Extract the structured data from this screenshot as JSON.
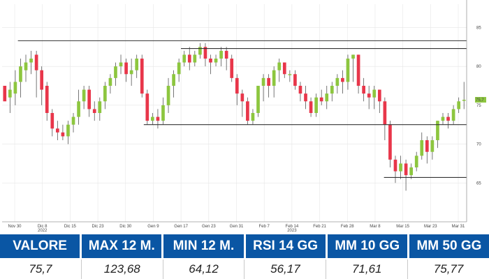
{
  "chart_data": {
    "type": "candlestick",
    "title": "",
    "y_axis": {
      "range": [
        60,
        88
      ],
      "ticks": [
        "85",
        "80",
        "75",
        "70",
        "65"
      ],
      "position": "right"
    },
    "x_axis": {
      "ticks": [
        "Nov 30",
        "Dic 8",
        "Dic 15",
        "Dic 23",
        "Dic 30",
        "Gen 9",
        "Gen 17",
        "Gen 23",
        "Gen 31",
        "Feb 7",
        "Feb 14",
        "Feb 21",
        "Feb 28",
        "Mar 8",
        "Mar 15",
        "Mar 23",
        "Mar 31"
      ],
      "year_labels": [
        {
          "label": "2022",
          "after": "Dic 8"
        },
        {
          "label": "2023",
          "after": "Feb 14"
        }
      ]
    },
    "last_value_marker": "75,7",
    "colors": {
      "up": "#8dc63f",
      "down": "#e8364a",
      "lines": "#333333",
      "grid": "#e6e6e6"
    },
    "candles": [
      [
        77.5,
        75.5,
        77.5,
        76.0
      ],
      [
        76.0,
        77.0,
        78.0,
        74.0
      ],
      [
        76.5,
        78.0,
        79.5,
        75.0
      ],
      [
        78.0,
        80.0,
        81.0,
        76.0
      ],
      [
        79.5,
        80.5,
        81.5,
        78.0
      ],
      [
        80.5,
        81.0,
        82.0,
        79.0
      ],
      [
        81.5,
        79.5,
        82.0,
        76.0
      ],
      [
        79.5,
        77.0,
        80.0,
        75.0
      ],
      [
        77.5,
        74.0,
        78.0,
        73.0
      ],
      [
        74.0,
        72.0,
        74.5,
        71.0
      ],
      [
        72.0,
        71.5,
        73.0,
        70.5
      ],
      [
        71.5,
        71.0,
        72.5,
        70.5
      ],
      [
        71.0,
        72.5,
        73.0,
        70.0
      ],
      [
        72.5,
        73.5,
        74.0,
        71.5
      ],
      [
        73.5,
        75.5,
        77.0,
        72.5
      ],
      [
        75.5,
        77.0,
        77.5,
        74.5
      ],
      [
        77.0,
        74.5,
        77.5,
        73.5
      ],
      [
        74.5,
        74.0,
        75.5,
        73.0
      ],
      [
        74.0,
        75.5,
        76.0,
        73.0
      ],
      [
        75.5,
        77.5,
        78.0,
        74.5
      ],
      [
        77.5,
        78.5,
        79.0,
        76.5
      ],
      [
        78.5,
        80.0,
        80.5,
        77.5
      ],
      [
        80.0,
        80.5,
        81.5,
        79.0
      ],
      [
        80.5,
        79.0,
        81.0,
        78.0
      ],
      [
        79.0,
        79.5,
        81.0,
        77.5
      ],
      [
        79.5,
        81.0,
        81.5,
        78.5
      ],
      [
        81.0,
        76.5,
        81.5,
        76.0
      ],
      [
        76.5,
        73.0,
        77.0,
        72.5
      ],
      [
        73.0,
        73.5,
        74.0,
        72.5
      ],
      [
        73.5,
        73.0,
        74.5,
        72.0
      ],
      [
        73.0,
        75.0,
        76.0,
        72.5
      ],
      [
        75.0,
        77.5,
        78.5,
        74.0
      ],
      [
        77.5,
        79.0,
        79.5,
        76.0
      ],
      [
        79.0,
        80.5,
        81.0,
        78.0
      ],
      [
        80.5,
        81.5,
        82.0,
        80.0
      ],
      [
        81.5,
        80.5,
        82.5,
        79.5
      ],
      [
        80.5,
        81.5,
        82.0,
        80.0
      ],
      [
        81.5,
        82.5,
        83.0,
        81.0
      ],
      [
        82.5,
        81.0,
        83.0,
        80.0
      ],
      [
        81.0,
        80.5,
        81.5,
        79.0
      ],
      [
        80.5,
        81.0,
        81.5,
        80.0
      ],
      [
        81.0,
        82.0,
        82.5,
        80.0
      ],
      [
        82.0,
        81.0,
        82.5,
        79.5
      ],
      [
        81.0,
        78.5,
        81.5,
        78.0
      ],
      [
        78.5,
        76.5,
        79.0,
        75.0
      ],
      [
        76.5,
        75.5,
        77.0,
        73.5
      ],
      [
        75.5,
        73.0,
        76.0,
        72.5
      ],
      [
        73.0,
        74.0,
        74.5,
        72.5
      ],
      [
        74.0,
        77.5,
        77.5,
        73.5
      ],
      [
        77.5,
        78.5,
        79.0,
        75.5
      ],
      [
        78.5,
        77.5,
        79.0,
        76.0
      ],
      [
        77.5,
        79.5,
        80.0,
        76.0
      ],
      [
        79.5,
        80.5,
        81.0,
        78.0
      ],
      [
        80.5,
        79.0,
        80.5,
        78.5
      ],
      [
        79.0,
        79.0,
        79.5,
        78.0
      ],
      [
        79.0,
        77.5,
        79.5,
        77.0
      ],
      [
        77.5,
        76.5,
        78.0,
        75.5
      ],
      [
        76.5,
        75.5,
        77.5,
        74.5
      ],
      [
        75.5,
        74.0,
        76.0,
        73.5
      ],
      [
        74.0,
        76.0,
        76.5,
        73.5
      ],
      [
        76.0,
        75.5,
        77.0,
        75.0
      ],
      [
        75.5,
        76.5,
        77.5,
        74.5
      ],
      [
        76.5,
        77.5,
        78.0,
        75.5
      ],
      [
        77.5,
        78.5,
        79.0,
        76.5
      ],
      [
        78.5,
        78.0,
        79.5,
        76.5
      ],
      [
        78.0,
        81.0,
        81.5,
        77.0
      ],
      [
        81.0,
        81.5,
        81.5,
        78.0
      ],
      [
        81.5,
        77.5,
        81.5,
        76.5
      ],
      [
        77.5,
        76.5,
        78.5,
        75.5
      ],
      [
        76.5,
        76.0,
        77.5,
        74.5
      ],
      [
        76.0,
        77.0,
        77.5,
        74.5
      ],
      [
        77.0,
        75.5,
        77.0,
        74.0
      ],
      [
        75.5,
        72.5,
        76.0,
        70.5
      ],
      [
        72.5,
        68.0,
        73.0,
        67.0
      ],
      [
        68.0,
        66.5,
        68.5,
        65.0
      ],
      [
        66.5,
        67.5,
        68.5,
        65.5
      ],
      [
        67.5,
        66.0,
        68.0,
        64.0
      ],
      [
        66.0,
        67.0,
        67.5,
        65.5
      ],
      [
        67.0,
        68.5,
        69.0,
        66.5
      ],
      [
        68.5,
        70.5,
        71.5,
        68.0
      ],
      [
        70.5,
        69.0,
        71.0,
        67.5
      ],
      [
        69.0,
        70.5,
        71.0,
        68.0
      ],
      [
        70.5,
        73.0,
        73.0,
        69.5
      ],
      [
        73.0,
        73.5,
        74.0,
        72.5
      ],
      [
        73.5,
        73.0,
        74.0,
        72.0
      ],
      [
        73.0,
        74.5,
        75.0,
        72.5
      ],
      [
        74.5,
        75.5,
        76.0,
        74.0
      ],
      [
        75.7,
        75.7,
        78.0,
        74.5
      ]
    ],
    "guide_lines": [
      {
        "y": 83.3,
        "from": 0.034,
        "to": 1.0
      },
      {
        "y": 82.3,
        "from": 0.385,
        "to": 1.0
      },
      {
        "y": 72.5,
        "from": 0.305,
        "to": 1.0
      },
      {
        "y": 65.7,
        "from": 0.822,
        "to": 1.0
      }
    ]
  },
  "stats": {
    "headers": [
      "VALORE",
      "MAX 12 M.",
      "MIN 12 M.",
      "RSI 14 GG",
      "MM 10 GG",
      "MM 50 GG"
    ],
    "values": [
      "75,7",
      "123,68",
      "64,12",
      "56,17",
      "71,61",
      "75,77"
    ]
  }
}
